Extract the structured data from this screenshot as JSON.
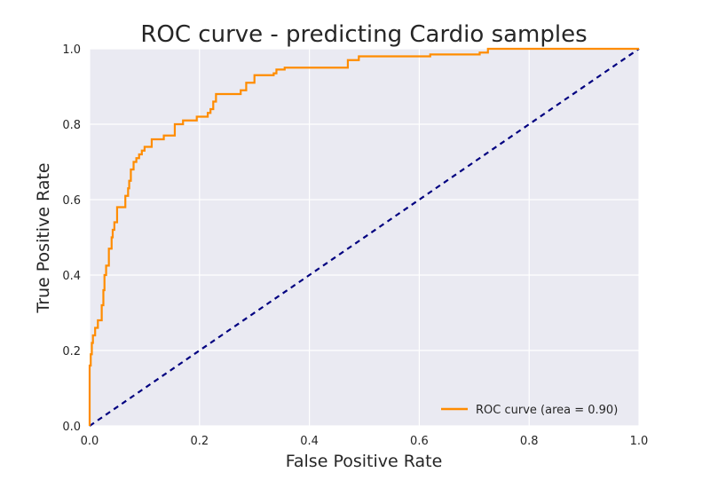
{
  "chart_data": {
    "type": "line",
    "title": "ROC curve - predicting Cardio samples",
    "xlabel": "False Positive Rate",
    "ylabel": "True Positive Rate",
    "xlim": [
      0.0,
      1.0
    ],
    "ylim": [
      0.0,
      1.0
    ],
    "xticks": [
      "0.0",
      "0.2",
      "0.4",
      "0.6",
      "0.8",
      "1.0"
    ],
    "yticks": [
      "0.0",
      "0.2",
      "0.4",
      "0.6",
      "0.8",
      "1.0"
    ],
    "grid": true,
    "legend_position": "lower-right",
    "series": [
      {
        "name": "ROC curve (area = 0.90)",
        "color": "#ff8c00",
        "style": "solid",
        "x": [
          0.0,
          0.0,
          0.002,
          0.002,
          0.004,
          0.004,
          0.006,
          0.006,
          0.01,
          0.01,
          0.015,
          0.015,
          0.022,
          0.022,
          0.025,
          0.025,
          0.027,
          0.027,
          0.03,
          0.03,
          0.035,
          0.035,
          0.04,
          0.04,
          0.042,
          0.042,
          0.045,
          0.045,
          0.05,
          0.05,
          0.065,
          0.065,
          0.07,
          0.07,
          0.072,
          0.072,
          0.075,
          0.075,
          0.08,
          0.08,
          0.085,
          0.085,
          0.09,
          0.09,
          0.095,
          0.095,
          0.1,
          0.1,
          0.113,
          0.113,
          0.135,
          0.135,
          0.155,
          0.155,
          0.17,
          0.17,
          0.195,
          0.195,
          0.215,
          0.215,
          0.22,
          0.22,
          0.225,
          0.225,
          0.23,
          0.23,
          0.275,
          0.275,
          0.285,
          0.285,
          0.3,
          0.3,
          0.335,
          0.335,
          0.34,
          0.34,
          0.355,
          0.355,
          0.4,
          0.4,
          0.45,
          0.45,
          0.47,
          0.47,
          0.49,
          0.49,
          0.56,
          0.56,
          0.62,
          0.62,
          0.71,
          0.71,
          0.725,
          0.725,
          1.0
        ],
        "y": [
          0.0,
          0.16,
          0.16,
          0.19,
          0.19,
          0.22,
          0.22,
          0.24,
          0.24,
          0.26,
          0.26,
          0.28,
          0.28,
          0.32,
          0.32,
          0.36,
          0.36,
          0.4,
          0.4,
          0.425,
          0.425,
          0.47,
          0.47,
          0.5,
          0.5,
          0.52,
          0.52,
          0.54,
          0.54,
          0.58,
          0.58,
          0.61,
          0.61,
          0.63,
          0.63,
          0.65,
          0.65,
          0.68,
          0.68,
          0.7,
          0.7,
          0.71,
          0.71,
          0.72,
          0.72,
          0.73,
          0.73,
          0.74,
          0.74,
          0.76,
          0.76,
          0.77,
          0.77,
          0.8,
          0.8,
          0.81,
          0.81,
          0.82,
          0.82,
          0.83,
          0.83,
          0.84,
          0.84,
          0.86,
          0.86,
          0.88,
          0.88,
          0.89,
          0.89,
          0.91,
          0.91,
          0.93,
          0.93,
          0.935,
          0.935,
          0.945,
          0.945,
          0.95,
          0.95,
          0.95,
          0.95,
          0.95,
          0.95,
          0.97,
          0.97,
          0.98,
          0.98,
          0.98,
          0.98,
          0.985,
          0.985,
          0.99,
          0.99,
          1.0,
          1.0
        ]
      },
      {
        "name": "",
        "color": "#000080",
        "style": "dashed",
        "x": [
          0.0,
          1.0
        ],
        "y": [
          0.0,
          1.0
        ]
      }
    ]
  }
}
